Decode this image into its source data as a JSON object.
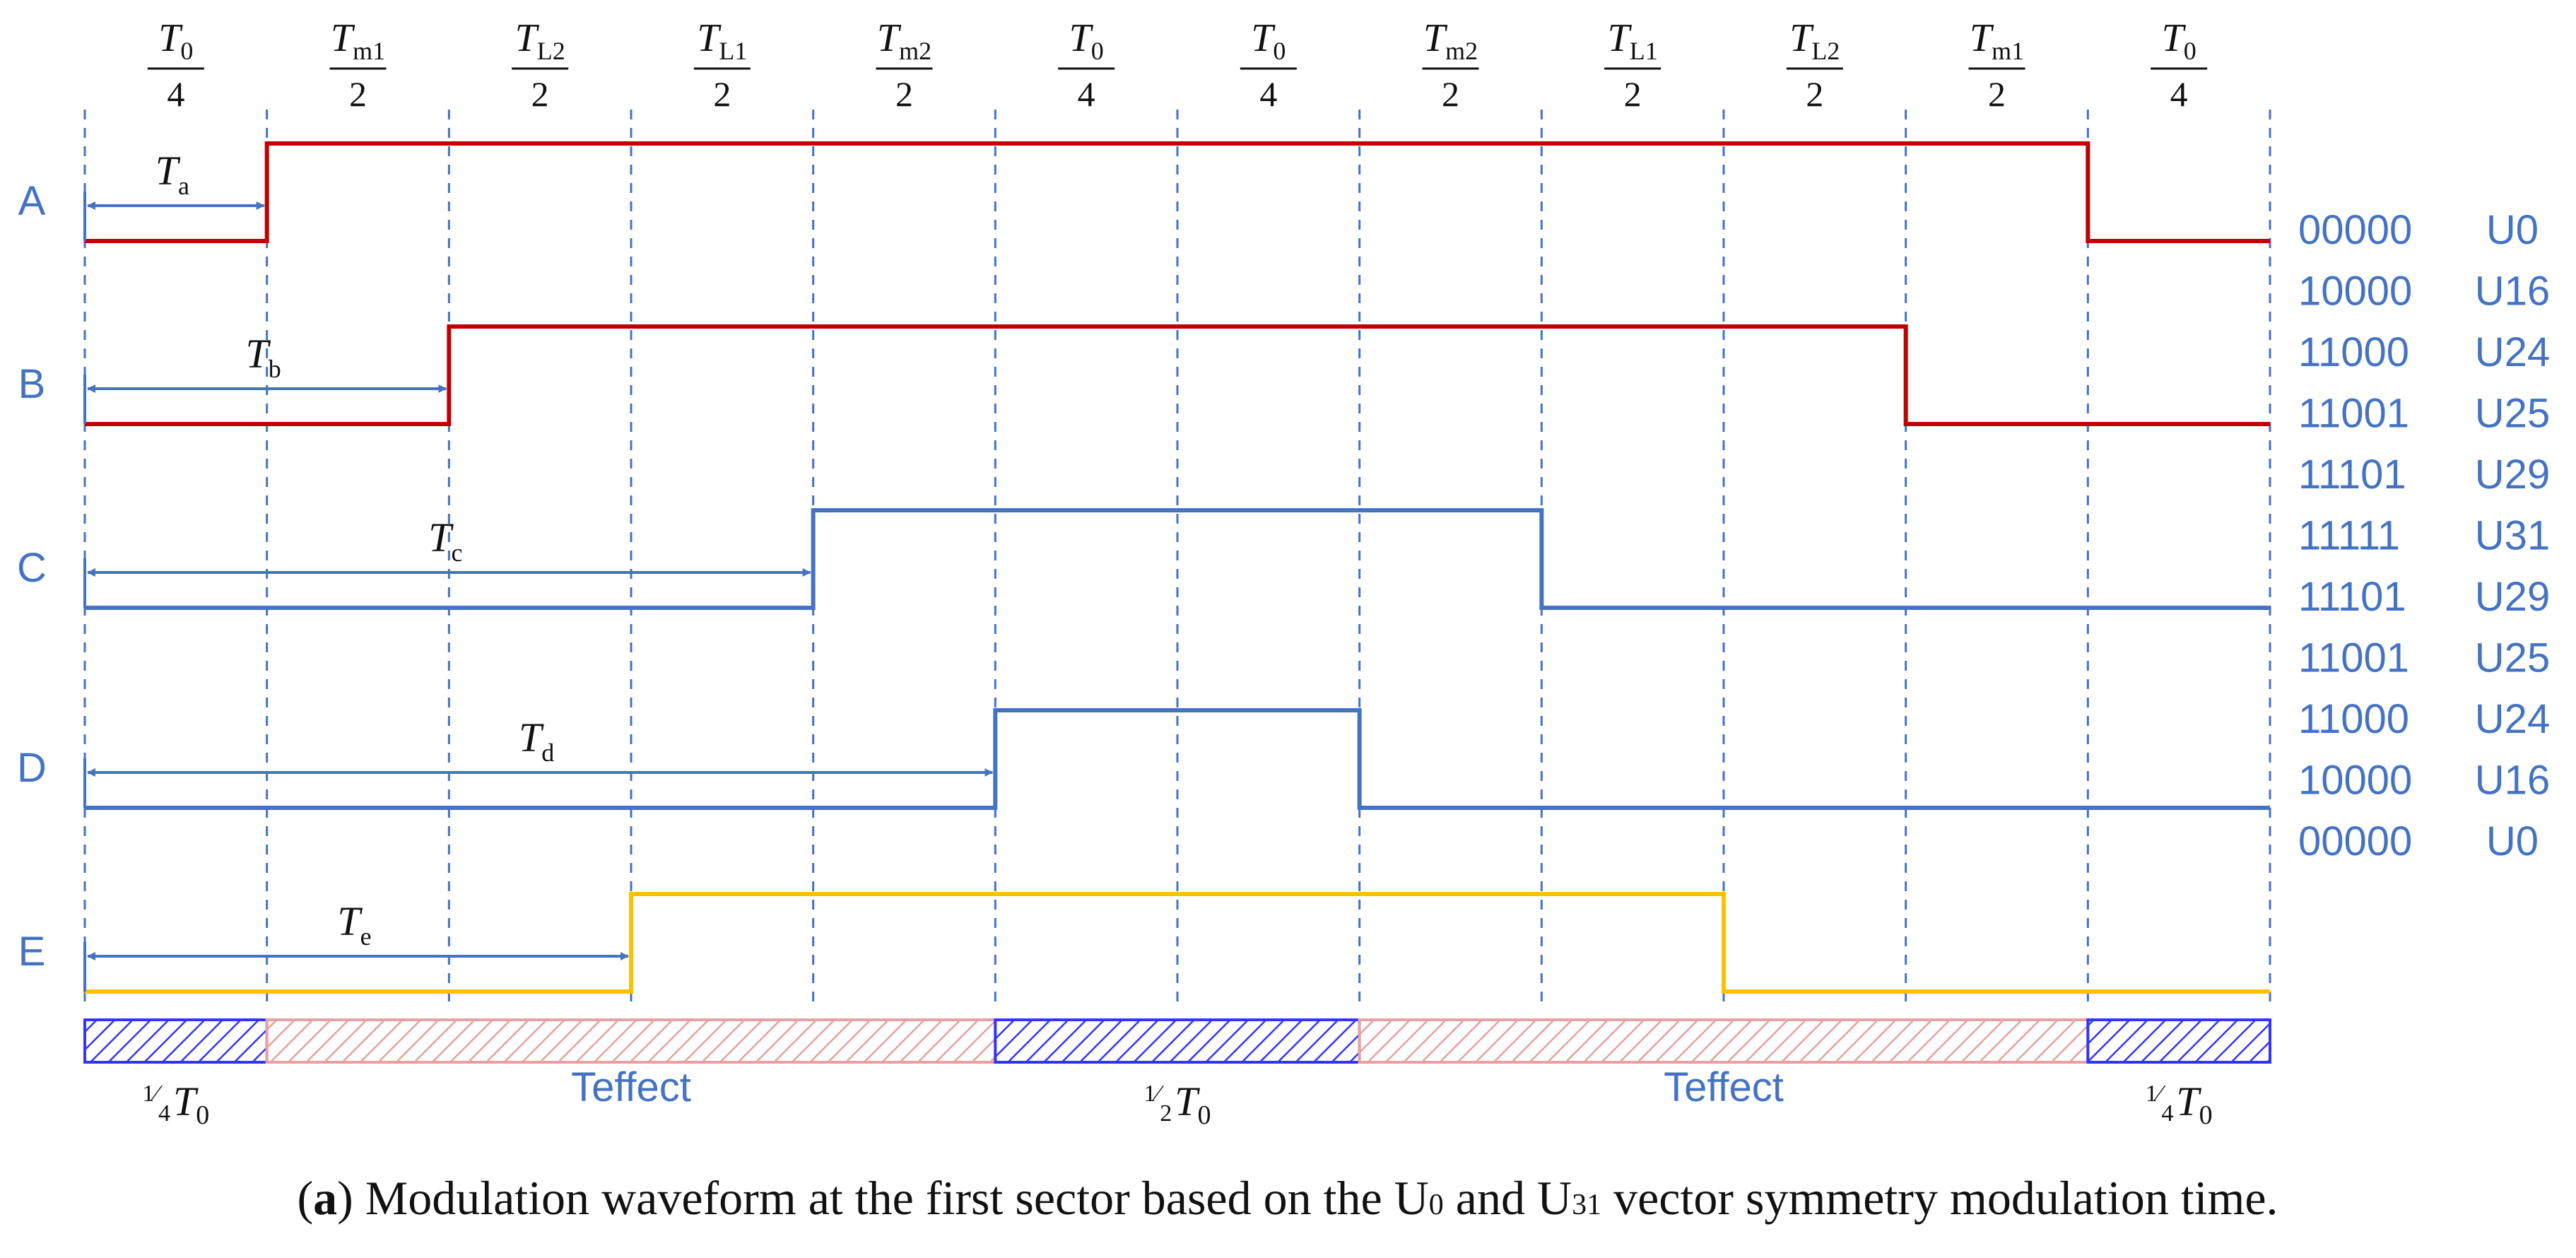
{
  "columns": [
    {
      "num": "T",
      "sub": "0",
      "den": "4"
    },
    {
      "num": "T",
      "sub": "m1",
      "den": "2"
    },
    {
      "num": "T",
      "sub": "L2",
      "den": "2"
    },
    {
      "num": "T",
      "sub": "L1",
      "den": "2"
    },
    {
      "num": "T",
      "sub": "m2",
      "den": "2"
    },
    {
      "num": "T",
      "sub": "0",
      "den": "4"
    },
    {
      "num": "T",
      "sub": "0",
      "den": "4"
    },
    {
      "num": "T",
      "sub": "m2",
      "den": "2"
    },
    {
      "num": "T",
      "sub": "L1",
      "den": "2"
    },
    {
      "num": "T",
      "sub": "L2",
      "den": "2"
    },
    {
      "num": "T",
      "sub": "m1",
      "den": "2"
    },
    {
      "num": "T",
      "sub": "0",
      "den": "4"
    }
  ],
  "phases": [
    {
      "label": "A",
      "color": "#c00000",
      "delay": {
        "main": "T",
        "sub": "a"
      },
      "on_boundary": 1,
      "off_boundary": 11
    },
    {
      "label": "B",
      "color": "#c00000",
      "delay": {
        "main": "T",
        "sub": "b"
      },
      "on_boundary": 2,
      "off_boundary": 10
    },
    {
      "label": "C",
      "color": "#4472c4",
      "delay": {
        "main": "T",
        "sub": "c"
      },
      "on_boundary": 4,
      "off_boundary": 8
    },
    {
      "label": "D",
      "color": "#4472c4",
      "delay": {
        "main": "T",
        "sub": "d"
      },
      "on_boundary": 5,
      "off_boundary": 7
    },
    {
      "label": "E",
      "color": "#ffc000",
      "delay": {
        "main": "T",
        "sub": "e"
      },
      "on_boundary": 3,
      "off_boundary": 9
    }
  ],
  "states": [
    {
      "code": "00000",
      "vector": "U0"
    },
    {
      "code": "10000",
      "vector": "U16"
    },
    {
      "code": "11000",
      "vector": "U24"
    },
    {
      "code": "11001",
      "vector": "U25"
    },
    {
      "code": "11101",
      "vector": "U29"
    },
    {
      "code": "11111",
      "vector": "U31"
    },
    {
      "code": "11101",
      "vector": "U29"
    },
    {
      "code": "11001",
      "vector": "U25"
    },
    {
      "code": "11000",
      "vector": "U24"
    },
    {
      "code": "10000",
      "vector": "U16"
    },
    {
      "code": "00000",
      "vector": "U0"
    }
  ],
  "bar": {
    "segments": [
      {
        "type": "zero",
        "from": 0,
        "to": 1,
        "frac": "1/4",
        "main": "T",
        "sub": "0"
      },
      {
        "type": "effect",
        "from": 1,
        "to": 5,
        "text": "Teffect"
      },
      {
        "type": "zero",
        "from": 5,
        "to": 7,
        "frac": "1/2",
        "main": "T",
        "sub": "0"
      },
      {
        "type": "effect",
        "from": 7,
        "to": 11,
        "text": "Teffect"
      },
      {
        "type": "zero",
        "from": 11,
        "to": 12,
        "frac": "1/4",
        "main": "T",
        "sub": "0"
      }
    ],
    "zero_color": "#3333ff",
    "effect_color": "#e8a0a0"
  },
  "label_color": "#4472c4",
  "grid_color": "#4472c4",
  "caption": {
    "open": "(",
    "bold": "a",
    "text1": ") Modulation waveform at the first sector based on the U",
    "sub1": "0",
    "text2": " and U",
    "sub2": "31",
    "text3": " vector symmetry modulation time."
  }
}
